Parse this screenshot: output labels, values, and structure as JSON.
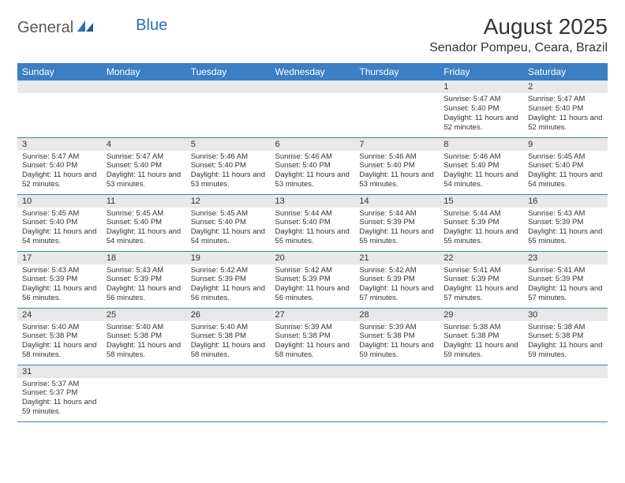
{
  "logo": {
    "text1": "General",
    "text2": "Blue"
  },
  "title": "August 2025",
  "location": "Senador Pompeu, Ceara, Brazil",
  "colors": {
    "header_bg": "#3b7fc4",
    "header_text": "#ffffff",
    "daynum_bg": "#e8e8e8",
    "row_divider": "#3b7fc4",
    "text": "#333333",
    "logo_gray": "#5a5a5a",
    "logo_blue": "#2a6fb0"
  },
  "day_headers": [
    "Sunday",
    "Monday",
    "Tuesday",
    "Wednesday",
    "Thursday",
    "Friday",
    "Saturday"
  ],
  "weeks": [
    [
      {
        "num": "",
        "sunrise": "",
        "sunset": "",
        "daylight": ""
      },
      {
        "num": "",
        "sunrise": "",
        "sunset": "",
        "daylight": ""
      },
      {
        "num": "",
        "sunrise": "",
        "sunset": "",
        "daylight": ""
      },
      {
        "num": "",
        "sunrise": "",
        "sunset": "",
        "daylight": ""
      },
      {
        "num": "",
        "sunrise": "",
        "sunset": "",
        "daylight": ""
      },
      {
        "num": "1",
        "sunrise": "Sunrise: 5:47 AM",
        "sunset": "Sunset: 5:40 PM",
        "daylight": "Daylight: 11 hours and 52 minutes."
      },
      {
        "num": "2",
        "sunrise": "Sunrise: 5:47 AM",
        "sunset": "Sunset: 5:40 PM",
        "daylight": "Daylight: 11 hours and 52 minutes."
      }
    ],
    [
      {
        "num": "3",
        "sunrise": "Sunrise: 5:47 AM",
        "sunset": "Sunset: 5:40 PM",
        "daylight": "Daylight: 11 hours and 52 minutes."
      },
      {
        "num": "4",
        "sunrise": "Sunrise: 5:47 AM",
        "sunset": "Sunset: 5:40 PM",
        "daylight": "Daylight: 11 hours and 53 minutes."
      },
      {
        "num": "5",
        "sunrise": "Sunrise: 5:46 AM",
        "sunset": "Sunset: 5:40 PM",
        "daylight": "Daylight: 11 hours and 53 minutes."
      },
      {
        "num": "6",
        "sunrise": "Sunrise: 5:46 AM",
        "sunset": "Sunset: 5:40 PM",
        "daylight": "Daylight: 11 hours and 53 minutes."
      },
      {
        "num": "7",
        "sunrise": "Sunrise: 5:46 AM",
        "sunset": "Sunset: 5:40 PM",
        "daylight": "Daylight: 11 hours and 53 minutes."
      },
      {
        "num": "8",
        "sunrise": "Sunrise: 5:46 AM",
        "sunset": "Sunset: 5:40 PM",
        "daylight": "Daylight: 11 hours and 54 minutes."
      },
      {
        "num": "9",
        "sunrise": "Sunrise: 5:45 AM",
        "sunset": "Sunset: 5:40 PM",
        "daylight": "Daylight: 11 hours and 54 minutes."
      }
    ],
    [
      {
        "num": "10",
        "sunrise": "Sunrise: 5:45 AM",
        "sunset": "Sunset: 5:40 PM",
        "daylight": "Daylight: 11 hours and 54 minutes."
      },
      {
        "num": "11",
        "sunrise": "Sunrise: 5:45 AM",
        "sunset": "Sunset: 5:40 PM",
        "daylight": "Daylight: 11 hours and 54 minutes."
      },
      {
        "num": "12",
        "sunrise": "Sunrise: 5:45 AM",
        "sunset": "Sunset: 5:40 PM",
        "daylight": "Daylight: 11 hours and 54 minutes."
      },
      {
        "num": "13",
        "sunrise": "Sunrise: 5:44 AM",
        "sunset": "Sunset: 5:40 PM",
        "daylight": "Daylight: 11 hours and 55 minutes."
      },
      {
        "num": "14",
        "sunrise": "Sunrise: 5:44 AM",
        "sunset": "Sunset: 5:39 PM",
        "daylight": "Daylight: 11 hours and 55 minutes."
      },
      {
        "num": "15",
        "sunrise": "Sunrise: 5:44 AM",
        "sunset": "Sunset: 5:39 PM",
        "daylight": "Daylight: 11 hours and 55 minutes."
      },
      {
        "num": "16",
        "sunrise": "Sunrise: 5:43 AM",
        "sunset": "Sunset: 5:39 PM",
        "daylight": "Daylight: 11 hours and 55 minutes."
      }
    ],
    [
      {
        "num": "17",
        "sunrise": "Sunrise: 5:43 AM",
        "sunset": "Sunset: 5:39 PM",
        "daylight": "Daylight: 11 hours and 56 minutes."
      },
      {
        "num": "18",
        "sunrise": "Sunrise: 5:43 AM",
        "sunset": "Sunset: 5:39 PM",
        "daylight": "Daylight: 11 hours and 56 minutes."
      },
      {
        "num": "19",
        "sunrise": "Sunrise: 5:42 AM",
        "sunset": "Sunset: 5:39 PM",
        "daylight": "Daylight: 11 hours and 56 minutes."
      },
      {
        "num": "20",
        "sunrise": "Sunrise: 5:42 AM",
        "sunset": "Sunset: 5:39 PM",
        "daylight": "Daylight: 11 hours and 56 minutes."
      },
      {
        "num": "21",
        "sunrise": "Sunrise: 5:42 AM",
        "sunset": "Sunset: 5:39 PM",
        "daylight": "Daylight: 11 hours and 57 minutes."
      },
      {
        "num": "22",
        "sunrise": "Sunrise: 5:41 AM",
        "sunset": "Sunset: 5:39 PM",
        "daylight": "Daylight: 11 hours and 57 minutes."
      },
      {
        "num": "23",
        "sunrise": "Sunrise: 5:41 AM",
        "sunset": "Sunset: 5:39 PM",
        "daylight": "Daylight: 11 hours and 57 minutes."
      }
    ],
    [
      {
        "num": "24",
        "sunrise": "Sunrise: 5:40 AM",
        "sunset": "Sunset: 5:38 PM",
        "daylight": "Daylight: 11 hours and 58 minutes."
      },
      {
        "num": "25",
        "sunrise": "Sunrise: 5:40 AM",
        "sunset": "Sunset: 5:38 PM",
        "daylight": "Daylight: 11 hours and 58 minutes."
      },
      {
        "num": "26",
        "sunrise": "Sunrise: 5:40 AM",
        "sunset": "Sunset: 5:38 PM",
        "daylight": "Daylight: 11 hours and 58 minutes."
      },
      {
        "num": "27",
        "sunrise": "Sunrise: 5:39 AM",
        "sunset": "Sunset: 5:38 PM",
        "daylight": "Daylight: 11 hours and 58 minutes."
      },
      {
        "num": "28",
        "sunrise": "Sunrise: 5:39 AM",
        "sunset": "Sunset: 5:38 PM",
        "daylight": "Daylight: 11 hours and 59 minutes."
      },
      {
        "num": "29",
        "sunrise": "Sunrise: 5:38 AM",
        "sunset": "Sunset: 5:38 PM",
        "daylight": "Daylight: 11 hours and 59 minutes."
      },
      {
        "num": "30",
        "sunrise": "Sunrise: 5:38 AM",
        "sunset": "Sunset: 5:38 PM",
        "daylight": "Daylight: 11 hours and 59 minutes."
      }
    ],
    [
      {
        "num": "31",
        "sunrise": "Sunrise: 5:37 AM",
        "sunset": "Sunset: 5:37 PM",
        "daylight": "Daylight: 11 hours and 59 minutes."
      },
      {
        "num": "",
        "sunrise": "",
        "sunset": "",
        "daylight": ""
      },
      {
        "num": "",
        "sunrise": "",
        "sunset": "",
        "daylight": ""
      },
      {
        "num": "",
        "sunrise": "",
        "sunset": "",
        "daylight": ""
      },
      {
        "num": "",
        "sunrise": "",
        "sunset": "",
        "daylight": ""
      },
      {
        "num": "",
        "sunrise": "",
        "sunset": "",
        "daylight": ""
      },
      {
        "num": "",
        "sunrise": "",
        "sunset": "",
        "daylight": ""
      }
    ]
  ]
}
